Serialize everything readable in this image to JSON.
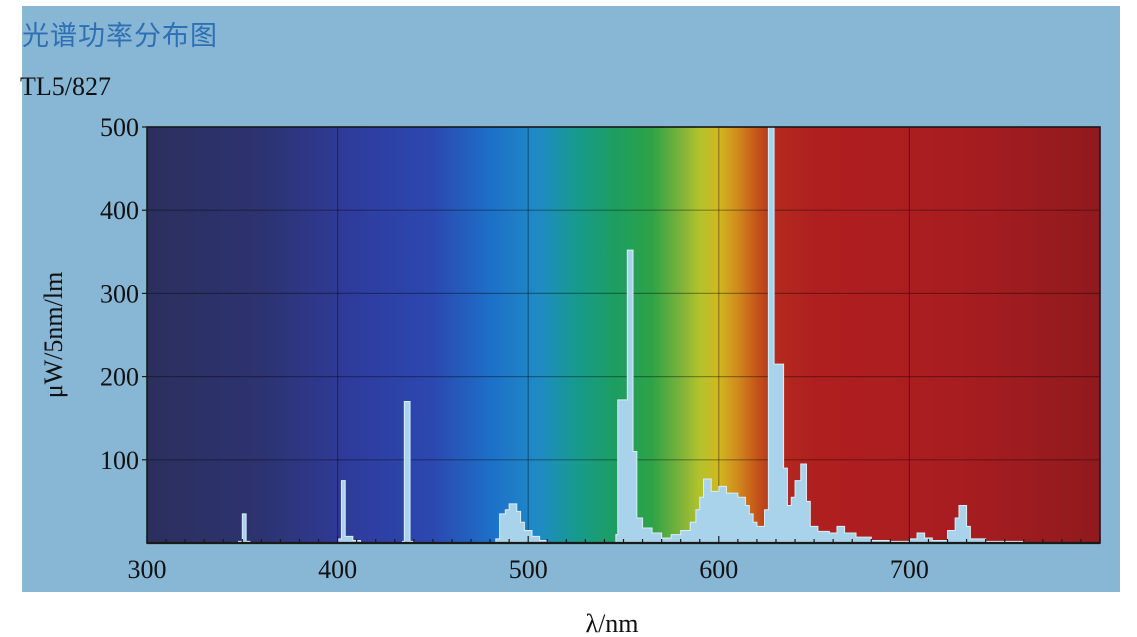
{
  "chart_data": {
    "type": "area",
    "title": "光谱功率分布图",
    "subtitle": "TL5/827",
    "xlabel": "λ/nm",
    "ylabel": "μW/5nm/lm",
    "xlim": [
      300,
      800
    ],
    "ylim": [
      0,
      500
    ],
    "x_ticks": [
      300,
      400,
      500,
      600,
      700
    ],
    "x_tick_labels": [
      "300",
      "400",
      "500",
      "600",
      "700"
    ],
    "y_ticks": [
      100,
      200,
      300,
      400,
      500
    ],
    "y_tick_labels": [
      "100",
      "200",
      "300",
      "400",
      "500"
    ],
    "grid": true,
    "background": "visible-spectrum-gradient",
    "series": [
      {
        "fill_color": "#a9d3ea",
        "points": [
          [
            300,
            0
          ],
          [
            340,
            0
          ],
          [
            348,
            0
          ],
          [
            348,
            2
          ],
          [
            350,
            2
          ],
          [
            350,
            35
          ],
          [
            352,
            35
          ],
          [
            352,
            2
          ],
          [
            354,
            2
          ],
          [
            354,
            0
          ],
          [
            380,
            0
          ],
          [
            400,
            0
          ],
          [
            400,
            5
          ],
          [
            402,
            5
          ],
          [
            402,
            75
          ],
          [
            404,
            75
          ],
          [
            404,
            8
          ],
          [
            408,
            8
          ],
          [
            408,
            3
          ],
          [
            412,
            3
          ],
          [
            412,
            0
          ],
          [
            432,
            0
          ],
          [
            434,
            0
          ],
          [
            434,
            2
          ],
          [
            435,
            2
          ],
          [
            435,
            170
          ],
          [
            438,
            170
          ],
          [
            438,
            2
          ],
          [
            440,
            2
          ],
          [
            440,
            0
          ],
          [
            475,
            0
          ],
          [
            483,
            0
          ],
          [
            483,
            5
          ],
          [
            485,
            5
          ],
          [
            485,
            35
          ],
          [
            488,
            35
          ],
          [
            488,
            40
          ],
          [
            490,
            40
          ],
          [
            490,
            47
          ],
          [
            494,
            47
          ],
          [
            494,
            38
          ],
          [
            496,
            38
          ],
          [
            496,
            25
          ],
          [
            498,
            25
          ],
          [
            498,
            15
          ],
          [
            502,
            15
          ],
          [
            502,
            8
          ],
          [
            506,
            8
          ],
          [
            506,
            3
          ],
          [
            510,
            3
          ],
          [
            510,
            0
          ],
          [
            545,
            0
          ],
          [
            546,
            0
          ],
          [
            546,
            10
          ],
          [
            547,
            10
          ],
          [
            547,
            172
          ],
          [
            552,
            172
          ],
          [
            552,
            352
          ],
          [
            555,
            352
          ],
          [
            555,
            110
          ],
          [
            557,
            110
          ],
          [
            557,
            30
          ],
          [
            560,
            30
          ],
          [
            560,
            18
          ],
          [
            565,
            18
          ],
          [
            565,
            12
          ],
          [
            570,
            12
          ],
          [
            570,
            6
          ],
          [
            575,
            6
          ],
          [
            575,
            10
          ],
          [
            580,
            10
          ],
          [
            580,
            15
          ],
          [
            585,
            15
          ],
          [
            585,
            25
          ],
          [
            588,
            25
          ],
          [
            588,
            40
          ],
          [
            590,
            40
          ],
          [
            590,
            55
          ],
          [
            592,
            55
          ],
          [
            592,
            77
          ],
          [
            596,
            77
          ],
          [
            596,
            62
          ],
          [
            600,
            62
          ],
          [
            600,
            68
          ],
          [
            604,
            68
          ],
          [
            604,
            60
          ],
          [
            610,
            60
          ],
          [
            610,
            55
          ],
          [
            614,
            55
          ],
          [
            614,
            45
          ],
          [
            616,
            45
          ],
          [
            616,
            35
          ],
          [
            618,
            35
          ],
          [
            618,
            25
          ],
          [
            620,
            25
          ],
          [
            620,
            20
          ],
          [
            624,
            20
          ],
          [
            624,
            40
          ],
          [
            626,
            40
          ],
          [
            626,
            500
          ],
          [
            629,
            500
          ],
          [
            629,
            215
          ],
          [
            634,
            215
          ],
          [
            634,
            90
          ],
          [
            636,
            90
          ],
          [
            636,
            45
          ],
          [
            638,
            45
          ],
          [
            638,
            55
          ],
          [
            640,
            55
          ],
          [
            640,
            75
          ],
          [
            643,
            75
          ],
          [
            643,
            95
          ],
          [
            646,
            95
          ],
          [
            646,
            50
          ],
          [
            648,
            50
          ],
          [
            648,
            20
          ],
          [
            652,
            20
          ],
          [
            652,
            14
          ],
          [
            658,
            14
          ],
          [
            658,
            12
          ],
          [
            662,
            12
          ],
          [
            662,
            20
          ],
          [
            666,
            20
          ],
          [
            666,
            12
          ],
          [
            672,
            12
          ],
          [
            672,
            7
          ],
          [
            680,
            7
          ],
          [
            680,
            3
          ],
          [
            690,
            3
          ],
          [
            690,
            2
          ],
          [
            700,
            2
          ],
          [
            700,
            5
          ],
          [
            704,
            5
          ],
          [
            704,
            12
          ],
          [
            708,
            12
          ],
          [
            708,
            6
          ],
          [
            712,
            6
          ],
          [
            712,
            3
          ],
          [
            720,
            3
          ],
          [
            720,
            15
          ],
          [
            724,
            15
          ],
          [
            724,
            30
          ],
          [
            726,
            30
          ],
          [
            726,
            45
          ],
          [
            730,
            45
          ],
          [
            730,
            20
          ],
          [
            732,
            20
          ],
          [
            732,
            5
          ],
          [
            740,
            5
          ],
          [
            740,
            2
          ],
          [
            760,
            2
          ],
          [
            760,
            0
          ],
          [
            800,
            0
          ]
        ]
      }
    ]
  }
}
